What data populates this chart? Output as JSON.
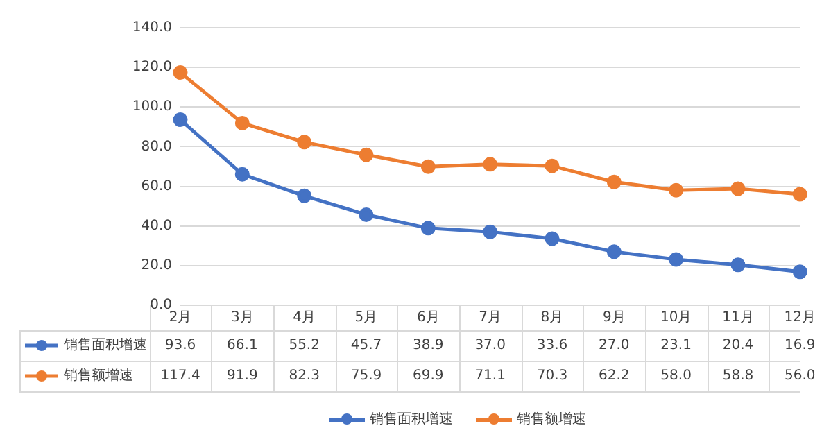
{
  "chart_data": {
    "type": "line",
    "categories": [
      "2月",
      "3月",
      "4月",
      "5月",
      "6月",
      "7月",
      "8月",
      "9月",
      "10月",
      "11月",
      "12月"
    ],
    "series": [
      {
        "name": "销售面积增速",
        "color": "#4472c4",
        "values": [
          93.6,
          66.1,
          55.2,
          45.7,
          38.9,
          37.0,
          33.6,
          27.0,
          23.1,
          20.4,
          16.9
        ],
        "value_labels": [
          "93.6",
          "66.1",
          "55.2",
          "45.7",
          "38.9",
          "37.0",
          "33.6",
          "27.0",
          "23.1",
          "20.4",
          "16.9"
        ]
      },
      {
        "name": "销售额增速",
        "color": "#ed7d31",
        "values": [
          117.4,
          91.9,
          82.3,
          75.9,
          69.9,
          71.1,
          70.3,
          62.2,
          58.0,
          58.8,
          56.0
        ],
        "value_labels": [
          "117.4",
          "91.9",
          "82.3",
          "75.9",
          "69.9",
          "71.1",
          "70.3",
          "62.2",
          "58.0",
          "58.8",
          "56.0"
        ]
      }
    ],
    "ylim": [
      0,
      140
    ],
    "yticks": [
      {
        "value": 0,
        "label": "0.0"
      },
      {
        "value": 20,
        "label": "20.0"
      },
      {
        "value": 40,
        "label": "40.0"
      },
      {
        "value": 60,
        "label": "60.0"
      },
      {
        "value": 80,
        "label": "80.0"
      },
      {
        "value": 100,
        "label": "100.0"
      },
      {
        "value": 120,
        "label": "120.0"
      },
      {
        "value": 140,
        "label": "140.0"
      }
    ],
    "grid": "y",
    "legend": "bottom",
    "marker": "circle",
    "line_style": "solid"
  }
}
